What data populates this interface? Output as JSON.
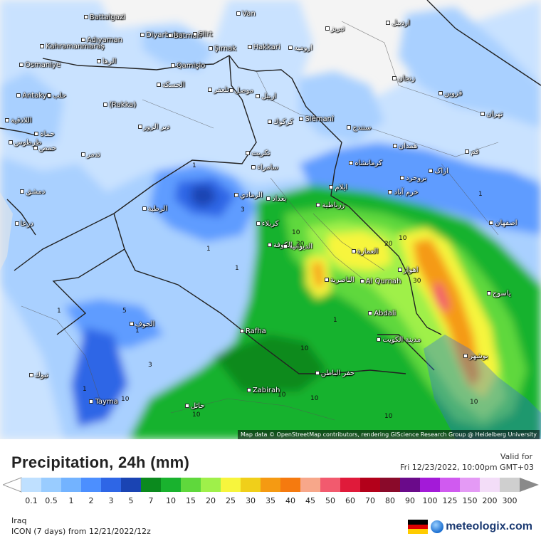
{
  "map": {
    "places": [
      {
        "name": "Battalgazi",
        "lat": 38.41,
        "lon": 38.37
      },
      {
        "name": "Diyarbakır",
        "lat": 37.91,
        "lon": 40.22
      },
      {
        "name": "Batman",
        "lat": 37.89,
        "lon": 41.13
      },
      {
        "name": "Siirt",
        "lat": 37.93,
        "lon": 41.94
      },
      {
        "name": "Van",
        "lat": 38.5,
        "lon": 43.38
      },
      {
        "name": "Kahramanmaraş",
        "lat": 37.58,
        "lon": 36.93
      },
      {
        "name": "Adıyaman",
        "lat": 37.76,
        "lon": 38.28
      },
      {
        "name": "Şırnak",
        "lat": 37.52,
        "lon": 42.46
      },
      {
        "name": "Hakkari",
        "lat": 37.57,
        "lon": 43.74
      },
      {
        "name": "Osmaniye",
        "lat": 37.07,
        "lon": 36.25
      },
      {
        "name": "الرها",
        "lat": 37.16,
        "lon": 38.79
      },
      {
        "name": "Qamişlo",
        "lat": 37.05,
        "lon": 41.22
      },
      {
        "name": "الحسكة",
        "lat": 36.5,
        "lon": 40.75
      },
      {
        "name": "موصل",
        "lat": 36.34,
        "lon": 43.13
      },
      {
        "name": "تلعفر",
        "lat": 36.37,
        "lon": 42.45
      },
      {
        "name": "اربيل",
        "lat": 36.19,
        "lon": 44.01
      },
      {
        "name": "Antakya",
        "lat": 36.2,
        "lon": 36.16
      },
      {
        "name": "حلب",
        "lat": 36.2,
        "lon": 37.16
      },
      {
        "name": "(Rakka)",
        "lat": 35.95,
        "lon": 39.01
      },
      {
        "name": "Slêmanî",
        "lat": 35.56,
        "lon": 45.44
      },
      {
        "name": "كركوك",
        "lat": 35.47,
        "lon": 44.39
      },
      {
        "name": "اللاذقية",
        "lat": 35.52,
        "lon": 35.79
      },
      {
        "name": "حماة",
        "lat": 35.13,
        "lon": 36.75
      },
      {
        "name": "حمص",
        "lat": 34.73,
        "lon": 36.71
      },
      {
        "name": "دير الزور",
        "lat": 35.33,
        "lon": 40.14
      },
      {
        "name": "تكريت",
        "lat": 34.6,
        "lon": 43.68
      },
      {
        "name": "تدمر",
        "lat": 34.56,
        "lon": 38.28
      },
      {
        "name": "سامراء",
        "lat": 34.2,
        "lon": 43.87
      },
      {
        "name": "كرمانشاه",
        "lat": 34.31,
        "lon": 47.07
      },
      {
        "name": "طرطوس",
        "lat": 34.89,
        "lon": 35.89
      },
      {
        "name": "دمشق",
        "lat": 33.51,
        "lon": 36.28
      },
      {
        "name": "الرمادي",
        "lat": 33.42,
        "lon": 43.3
      },
      {
        "name": "بغداد",
        "lat": 33.31,
        "lon": 44.36
      },
      {
        "name": "ايلام",
        "lat": 33.64,
        "lon": 46.42
      },
      {
        "name": "الرطبة",
        "lat": 33.04,
        "lon": 40.28
      },
      {
        "name": "كربلاء",
        "lat": 32.62,
        "lon": 44.02
      },
      {
        "name": "زرباطية",
        "lat": 33.13,
        "lon": 46.0
      },
      {
        "name": "درعا",
        "lat": 32.62,
        "lon": 36.1
      },
      {
        "name": "الكوفة",
        "lat": 32.03,
        "lon": 44.4
      },
      {
        "name": "العمارة",
        "lat": 31.84,
        "lon": 47.15
      },
      {
        "name": "الديوانية",
        "lat": 31.99,
        "lon": 44.92
      },
      {
        "name": "اهواز",
        "lat": 31.32,
        "lon": 48.67
      },
      {
        "name": "الناصرية",
        "lat": 31.04,
        "lon": 46.26
      },
      {
        "name": "Al Qurnah",
        "lat": 31.01,
        "lon": 47.43
      },
      {
        "name": "الجوف",
        "lat": 29.8,
        "lon": 39.86
      },
      {
        "name": "Abdali",
        "lat": 30.1,
        "lon": 47.7
      },
      {
        "name": "Rafha",
        "lat": 29.62,
        "lon": 43.49
      },
      {
        "name": "مدينة الكويت",
        "lat": 29.37,
        "lon": 47.98
      },
      {
        "name": "بوشهر",
        "lat": 28.92,
        "lon": 50.83
      },
      {
        "name": "حفر الباطن",
        "lat": 28.43,
        "lon": 45.96
      },
      {
        "name": "Zabirah",
        "lat": 27.95,
        "lon": 43.72
      },
      {
        "name": "Tayma",
        "lat": 27.63,
        "lon": 38.55
      },
      {
        "name": "حائل",
        "lat": 27.52,
        "lon": 41.69
      },
      {
        "name": "تبوك",
        "lat": 28.38,
        "lon": 36.57
      },
      {
        "name": "تبریز",
        "lat": 38.08,
        "lon": 46.29
      },
      {
        "name": "اردبیل",
        "lat": 38.25,
        "lon": 48.29
      },
      {
        "name": "ارومیه",
        "lat": 37.55,
        "lon": 45.08
      },
      {
        "name": "زنجان",
        "lat": 36.68,
        "lon": 48.48
      },
      {
        "name": "قزوین",
        "lat": 36.27,
        "lon": 50.0
      },
      {
        "name": "همدان",
        "lat": 34.8,
        "lon": 48.51
      },
      {
        "name": "سنندج",
        "lat": 35.31,
        "lon": 47.0
      },
      {
        "name": "تهران",
        "lat": 35.69,
        "lon": 51.39
      },
      {
        "name": "اراک",
        "lat": 34.09,
        "lon": 49.69
      },
      {
        "name": "قم",
        "lat": 34.64,
        "lon": 50.88
      },
      {
        "name": "اصفهان",
        "lat": 32.65,
        "lon": 51.67
      },
      {
        "name": "خرم آباد",
        "lat": 33.49,
        "lon": 48.36
      },
      {
        "name": "بروجرد",
        "lat": 33.9,
        "lon": 48.75
      },
      {
        "name": "یاسوج",
        "lat": 30.67,
        "lon": 51.59
      }
    ],
    "contour_labels": [
      "1",
      "1",
      "1",
      "3",
      "1",
      "1",
      "5",
      "1",
      "3",
      "1",
      "10",
      "20",
      "20",
      "30",
      "10",
      "10",
      "10",
      "10",
      "10",
      "10",
      "10",
      "1",
      "10"
    ],
    "attribution": "Map data © OpenStreetMap contributors, rendering GIScience Research Group @ Heidelberg University"
  },
  "legend": {
    "title": "Precipitation, 24h (mm)",
    "valid_label": "Valid for",
    "valid_date": "Fri 12/23/2022, 10:00pm GMT+03",
    "scale": [
      {
        "label": "0.1",
        "color": "#bfe0ff"
      },
      {
        "label": "0.5",
        "color": "#99ccff"
      },
      {
        "label": "1",
        "color": "#73b3ff"
      },
      {
        "label": "2",
        "color": "#4c8fff"
      },
      {
        "label": "3",
        "color": "#2e66e6"
      },
      {
        "label": "5",
        "color": "#1a44b3"
      },
      {
        "label": "7",
        "color": "#0b8a1e"
      },
      {
        "label": "10",
        "color": "#19b22e"
      },
      {
        "label": "15",
        "color": "#5fd83c"
      },
      {
        "label": "20",
        "color": "#9ff04a"
      },
      {
        "label": "25",
        "color": "#f7f53d"
      },
      {
        "label": "30",
        "color": "#f0cf1a"
      },
      {
        "label": "35",
        "color": "#f59a12"
      },
      {
        "label": "40",
        "color": "#f57a0f"
      },
      {
        "label": "45",
        "color": "#f7a78a"
      },
      {
        "label": "50",
        "color": "#f25a6e"
      },
      {
        "label": "60",
        "color": "#e01a3a"
      },
      {
        "label": "70",
        "color": "#b3001a"
      },
      {
        "label": "80",
        "color": "#8a0a2a"
      },
      {
        "label": "90",
        "color": "#6a0a8a"
      },
      {
        "label": "100",
        "color": "#a31ad8"
      },
      {
        "label": "125",
        "color": "#d05af0"
      },
      {
        "label": "150",
        "color": "#e49af5"
      },
      {
        "label": "200",
        "color": "#f3ddf8"
      },
      {
        "label": "300",
        "color": "#cfcfcf"
      }
    ],
    "region": "Iraq",
    "run": "ICON (7 days) from 12/21/2022/12z",
    "brand": "meteologix.com",
    "flag_colors": [
      "#000000",
      "#dd0000",
      "#ffcc00"
    ]
  }
}
